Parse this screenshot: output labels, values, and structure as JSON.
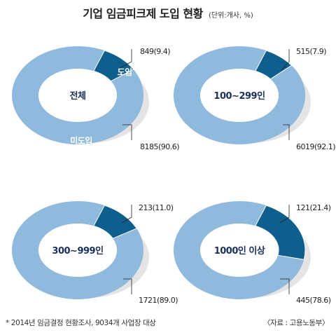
{
  "header": {
    "title": "기업 임금피크제 도입 현황",
    "unit": "(단위:개사, %)"
  },
  "footer": {
    "note": "* 2014년 임금결정 현황조사, 9034개 사업장 대상",
    "source": "〈자료 : 고용노동부〉"
  },
  "colors": {
    "adopted": "#0e5e8e",
    "not_adopted": "#8fb9dd",
    "shadow": "#e4e4e4",
    "label": "#1c2f5c"
  },
  "chart_data": [
    {
      "type": "pie",
      "title": "전체",
      "slices": [
        {
          "name": "도입",
          "value": 849,
          "percent": 9.4,
          "label": "849(9.4)"
        },
        {
          "name": "미도입",
          "value": 8185,
          "percent": 90.6,
          "label": "8185(90.6)"
        }
      ]
    },
    {
      "type": "pie",
      "title": "100∼299인",
      "slices": [
        {
          "name": "",
          "value": 515,
          "percent": 7.9,
          "label": "515(7.9)"
        },
        {
          "name": "",
          "value": 6019,
          "percent": 92.1,
          "label": "6019(92.1)"
        }
      ]
    },
    {
      "type": "pie",
      "title": "300∼999인",
      "slices": [
        {
          "name": "",
          "value": 213,
          "percent": 11.0,
          "label": "213(11.0)"
        },
        {
          "name": "",
          "value": 1721,
          "percent": 89.0,
          "label": "1721(89.0)"
        }
      ]
    },
    {
      "type": "pie",
      "title": "1000인 이상",
      "slices": [
        {
          "name": "",
          "value": 121,
          "percent": 21.4,
          "label": "121(21.4)"
        },
        {
          "name": "",
          "value": 445,
          "percent": 78.6,
          "label": "445(78.6)"
        }
      ]
    }
  ]
}
